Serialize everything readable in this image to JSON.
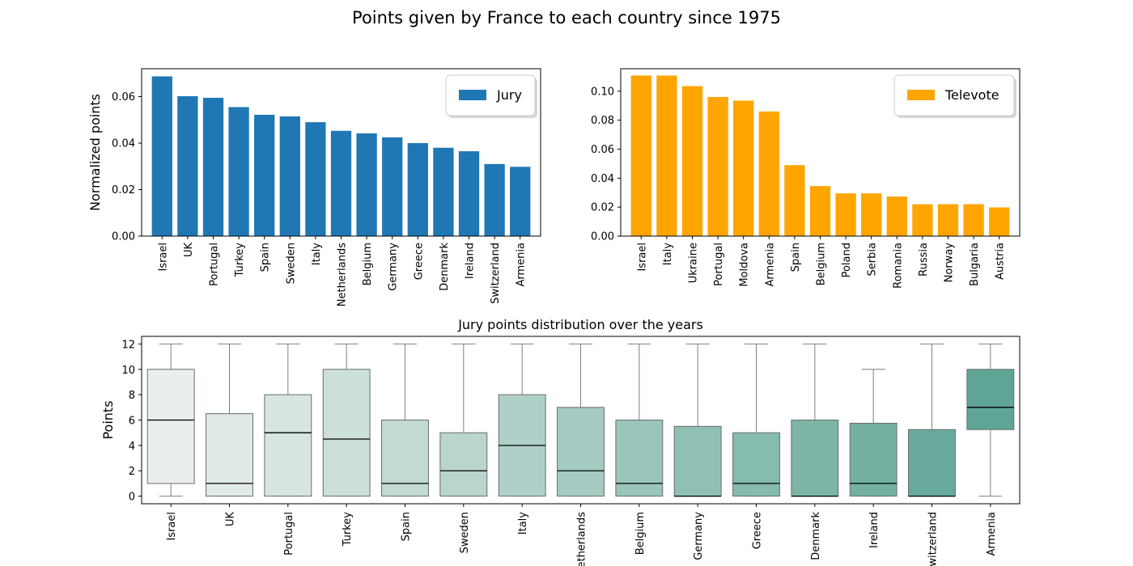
{
  "figure_title": "Points given by France to each country since 1975",
  "chart_data": [
    {
      "type": "bar",
      "title": "",
      "xlabel": "",
      "ylabel": "Normalized points",
      "ylim": [
        0,
        0.072
      ],
      "yticks": [
        0.0,
        0.02,
        0.04,
        0.06
      ],
      "ytick_labels": [
        "0.00",
        "0.02",
        "0.04",
        "0.06"
      ],
      "grid": false,
      "legend_position": "top-right",
      "categories": [
        "Israel",
        "UK",
        "Portugal",
        "Turkey",
        "Spain",
        "Sweden",
        "Italy",
        "Netherlands",
        "Belgium",
        "Germany",
        "Greece",
        "Denmark",
        "Ireland",
        "Switzerland",
        "Armenia"
      ],
      "series": [
        {
          "name": "Jury",
          "color": "#1f77b4",
          "values": [
            0.0687,
            0.0602,
            0.0595,
            0.0555,
            0.0522,
            0.0515,
            0.049,
            0.0453,
            0.0442,
            0.0425,
            0.04,
            0.038,
            0.0365,
            0.031,
            0.0298
          ]
        }
      ]
    },
    {
      "type": "bar",
      "title": "",
      "xlabel": "",
      "ylabel": "",
      "ylim": [
        0,
        0.1155
      ],
      "yticks": [
        0.0,
        0.02,
        0.04,
        0.06,
        0.08,
        0.1
      ],
      "ytick_labels": [
        "0.00",
        "0.02",
        "0.04",
        "0.06",
        "0.08",
        "0.10"
      ],
      "grid": false,
      "legend_position": "top-right",
      "categories": [
        "Israel",
        "Italy",
        "Ukraine",
        "Portugal",
        "Moldova",
        "Armenia",
        "Spain",
        "Belgium",
        "Poland",
        "Serbia",
        "Romania",
        "Russia",
        "Norway",
        "Bulgaria",
        "Austria"
      ],
      "series": [
        {
          "name": "Televote",
          "color": "#ffa500",
          "values": [
            0.1108,
            0.1108,
            0.1035,
            0.096,
            0.0935,
            0.086,
            0.049,
            0.0345,
            0.0295,
            0.0295,
            0.0273,
            0.022,
            0.022,
            0.022,
            0.0198
          ]
        }
      ]
    },
    {
      "type": "box",
      "title": "Jury points distribution over the years",
      "xlabel": "",
      "ylabel": "Points",
      "ylim": [
        -0.6,
        12.6
      ],
      "yticks": [
        0,
        2,
        4,
        6,
        8,
        10,
        12
      ],
      "ytick_labels": [
        "0",
        "2",
        "4",
        "6",
        "8",
        "10",
        "12"
      ],
      "grid": false,
      "categories": [
        "Israel",
        "UK",
        "Portugal",
        "Turkey",
        "Spain",
        "Sweden",
        "Italy",
        "Netherlands",
        "Belgium",
        "Germany",
        "Greece",
        "Denmark",
        "Ireland",
        "Switzerland",
        "Armenia"
      ],
      "boxes": [
        {
          "min": 0,
          "q1": 1,
          "median": 6,
          "q3": 10,
          "max": 12,
          "color": "#e9efed"
        },
        {
          "min": 0,
          "q1": 0,
          "median": 1,
          "q3": 6.5,
          "max": 12,
          "color": "#e0eae7"
        },
        {
          "min": 0,
          "q1": 0,
          "median": 5,
          "q3": 8,
          "max": 12,
          "color": "#d6e5e1"
        },
        {
          "min": 0,
          "q1": 0,
          "median": 4.5,
          "q3": 10,
          "max": 12,
          "color": "#cce0db"
        },
        {
          "min": 0,
          "q1": 0,
          "median": 1,
          "q3": 6,
          "max": 12,
          "color": "#c2dad4"
        },
        {
          "min": 0,
          "q1": 0,
          "median": 2,
          "q3": 5,
          "max": 12,
          "color": "#b8d5ce"
        },
        {
          "min": 0,
          "q1": 0,
          "median": 4,
          "q3": 8,
          "max": 12,
          "color": "#afd0c8"
        },
        {
          "min": 0,
          "q1": 0,
          "median": 2,
          "q3": 7,
          "max": 12,
          "color": "#a4cbc2"
        },
        {
          "min": 0,
          "q1": 0,
          "median": 1,
          "q3": 6,
          "max": 12,
          "color": "#9ac5bb"
        },
        {
          "min": 0,
          "q1": 0,
          "median": 0,
          "q3": 5.5,
          "max": 12,
          "color": "#90c0b5"
        },
        {
          "min": 0,
          "q1": 0,
          "median": 1,
          "q3": 5,
          "max": 12,
          "color": "#86bbaf"
        },
        {
          "min": 0,
          "q1": 0,
          "median": 0,
          "q3": 6,
          "max": 12,
          "color": "#7cb5a8"
        },
        {
          "min": 0,
          "q1": 0,
          "median": 1,
          "q3": 5.75,
          "max": 10,
          "color": "#72b0a2"
        },
        {
          "min": 0,
          "q1": 0,
          "median": 0,
          "q3": 5.25,
          "max": 12,
          "color": "#68aa9c"
        },
        {
          "min": 0,
          "q1": 5.25,
          "median": 7,
          "q3": 10,
          "max": 12,
          "color": "#5fa596"
        }
      ]
    }
  ]
}
